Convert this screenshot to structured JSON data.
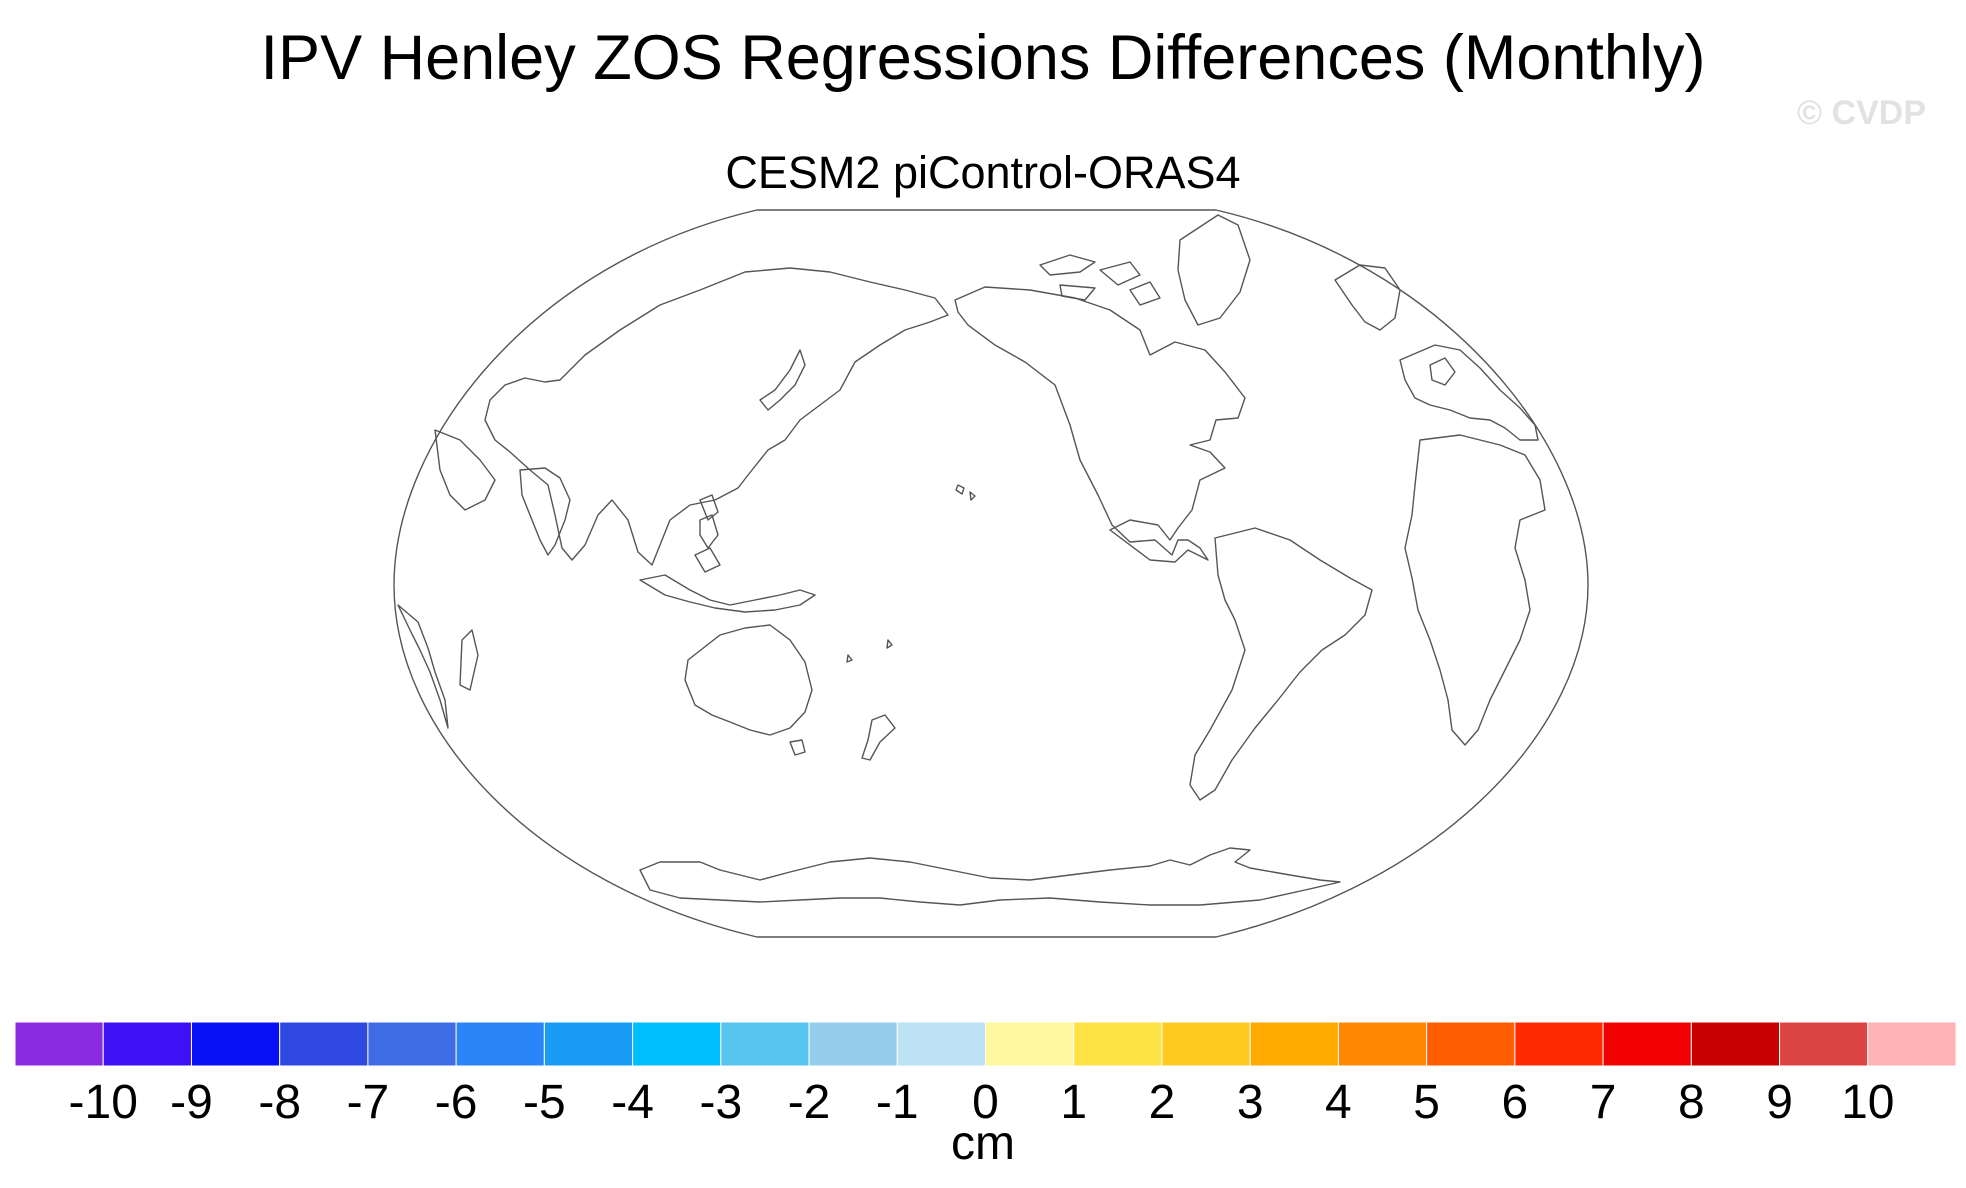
{
  "figure": {
    "title": "IPV Henley ZOS Regressions Differences (Monthly)",
    "subtitle": "CESM2 piControl-ORAS4",
    "watermark": "© CVDP"
  },
  "colorbar": {
    "units": "cm",
    "labels": [
      "-10",
      "-9",
      "-8",
      "-7",
      "-6",
      "-5",
      "-4",
      "-3",
      "-2",
      "-1",
      "0",
      "1",
      "2",
      "3",
      "4",
      "5",
      "6",
      "7",
      "8",
      "9",
      "10"
    ],
    "colors": [
      "#8a2be2",
      "#3e10f5",
      "#0a10f5",
      "#2f48e2",
      "#3d6ce6",
      "#2a85f7",
      "#1a9cf5",
      "#00bfff",
      "#57c4f0",
      "#95cdea",
      "#bde2f4",
      "#fff89e",
      "#ffe244",
      "#ffc91f",
      "#ffaa00",
      "#ff8800",
      "#ff5e00",
      "#ff2a00",
      "#f00000",
      "#c80000",
      "#dd4444",
      "#ffb3b3"
    ]
  },
  "map": {
    "projection": "robinson",
    "center_longitude": 180,
    "field": "blank"
  }
}
